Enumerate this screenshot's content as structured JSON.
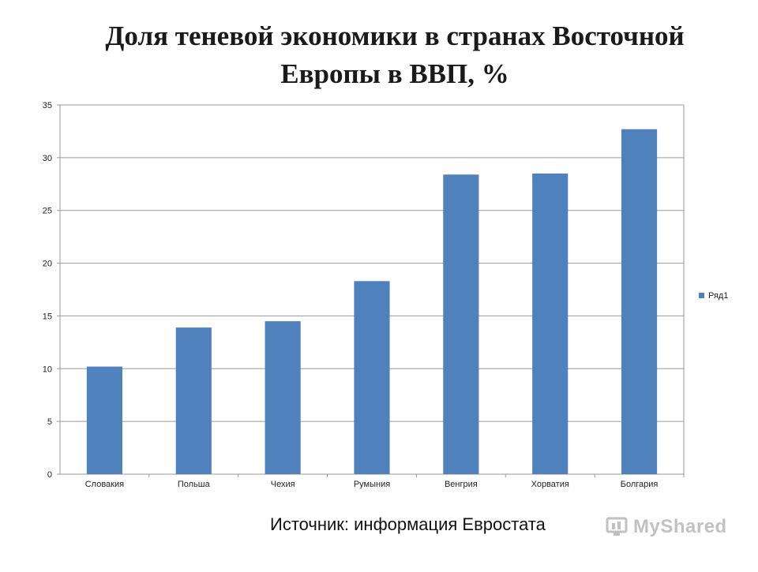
{
  "chart_data": {
    "type": "bar",
    "title_lines": [
      "Доля теневой экономики  в странах Восточной",
      "Европы в ВВП, %"
    ],
    "categories": [
      "Словакия",
      "Польша",
      "Чехия",
      "Румыния",
      "Венгрия",
      "Хорватия",
      "Болгария"
    ],
    "series": [
      {
        "name": "Ряд1",
        "values": [
          10.2,
          13.9,
          14.5,
          18.3,
          28.4,
          28.5,
          32.7
        ],
        "color": "#4f81bd"
      }
    ],
    "ylim": [
      0,
      35
    ],
    "yticks": [
      "0",
      "5",
      "10",
      "15",
      "20",
      "25",
      "30",
      "35"
    ],
    "ytick_values": [
      0,
      5,
      10,
      15,
      20,
      25,
      30,
      35
    ],
    "grid": true,
    "legend": "right",
    "xlabel": "",
    "ylabel": ""
  },
  "footer": {
    "source": "Источник: информация Евростата"
  },
  "watermark": {
    "text": "MyShared",
    "icon": "myshared-logo-icon"
  }
}
